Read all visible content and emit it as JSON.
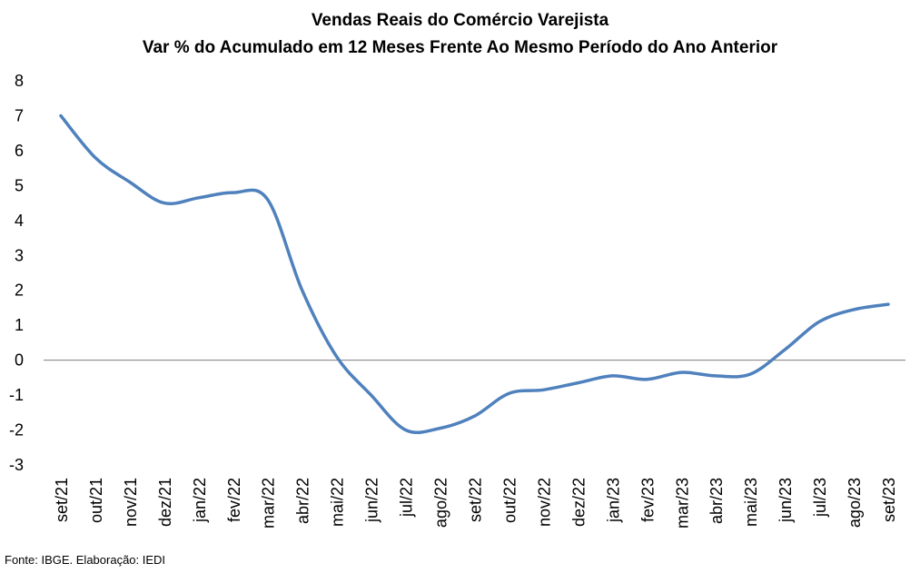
{
  "chart_data": {
    "type": "line",
    "title": "Vendas Reais do Comércio Varejista",
    "subtitle": "Var % do Acumulado em 12 Meses Frente Ao Mesmo Período do Ano Anterior",
    "categories": [
      "set/21",
      "out/21",
      "nov/21",
      "dez/21",
      "jan/22",
      "fev/22",
      "mar/22",
      "abr/22",
      "mai/22",
      "jun/22",
      "jul/22",
      "ago/22",
      "set/22",
      "out/22",
      "nov/22",
      "dez/22",
      "jan/23",
      "fev/23",
      "mar/23",
      "abr/23",
      "mai/23",
      "jun/23",
      "jul/23",
      "ago/23",
      "set/23"
    ],
    "series": [
      {
        "values": [
          7.0,
          5.8,
          5.1,
          4.5,
          4.65,
          4.8,
          4.6,
          2.0,
          0.1,
          -1.0,
          -2.0,
          -1.95,
          -1.6,
          -0.95,
          -0.85,
          -0.65,
          -0.45,
          -0.55,
          -0.35,
          -0.45,
          -0.4,
          0.3,
          1.1,
          1.45,
          1.6
        ],
        "color": "#4f81bd"
      }
    ],
    "ylim": [
      -3,
      8
    ],
    "yticks": [
      -3,
      -2,
      -1,
      0,
      1,
      2,
      3,
      4,
      5,
      6,
      7,
      8
    ],
    "xlabel": "",
    "ylabel": "",
    "grid": false,
    "legend": "none",
    "zero_line_color": "#7f7f7f"
  },
  "footer": {
    "source": "Fonte: IBGE. Elaboração: IEDI"
  }
}
